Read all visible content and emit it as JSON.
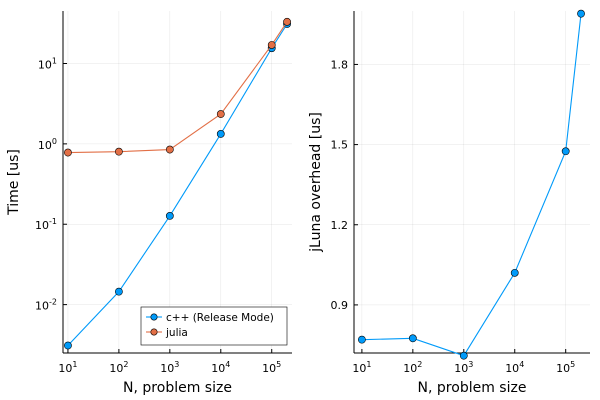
{
  "colors": {
    "cpp": "#009AF9",
    "julia": "#E26F46"
  },
  "chart_data": [
    {
      "type": "line",
      "xscale": "log",
      "yscale": "log",
      "xlabel": "N, problem size",
      "ylabel": "Time [us]",
      "xlim": [
        8,
        250000
      ],
      "ylim": [
        0.0025,
        45
      ],
      "xticks": [
        10,
        100,
        1000,
        10000,
        100000
      ],
      "xtick_labels": [
        {
          "base": "10",
          "exp": "1"
        },
        {
          "base": "10",
          "exp": "2"
        },
        {
          "base": "10",
          "exp": "3"
        },
        {
          "base": "10",
          "exp": "4"
        },
        {
          "base": "10",
          "exp": "5"
        }
      ],
      "yticks": [
        0.01,
        0.1,
        1,
        10
      ],
      "ytick_labels": [
        {
          "base": "10",
          "exp": "-2"
        },
        {
          "base": "10",
          "exp": "-1"
        },
        {
          "base": "10",
          "exp": "0"
        },
        {
          "base": "10",
          "exp": "1"
        }
      ],
      "grid": true,
      "legend_position": "bottom-right",
      "series": [
        {
          "name": "c++ (Release Mode)",
          "color": "#009AF9",
          "x": [
            10,
            100,
            1000,
            10000,
            100000,
            200000
          ],
          "y": [
            0.0031,
            0.0145,
            0.127,
            1.33,
            15.5,
            31
          ]
        },
        {
          "name": "julia",
          "color": "#E26F46",
          "x": [
            10,
            100,
            1000,
            10000,
            100000,
            200000
          ],
          "y": [
            0.78,
            0.8,
            0.85,
            2.35,
            17,
            33
          ]
        }
      ]
    },
    {
      "type": "line",
      "xscale": "log",
      "yscale": "linear",
      "xlabel": "N, problem size",
      "ylabel": "jLuna overhead [us]",
      "xlim": [
        7,
        300000
      ],
      "ylim": [
        0.72,
        2.0
      ],
      "xticks": [
        10,
        100,
        1000,
        10000,
        100000
      ],
      "xtick_labels": [
        {
          "base": "10",
          "exp": "1"
        },
        {
          "base": "10",
          "exp": "2"
        },
        {
          "base": "10",
          "exp": "3"
        },
        {
          "base": "10",
          "exp": "4"
        },
        {
          "base": "10",
          "exp": "5"
        }
      ],
      "yticks": [
        0.9,
        1.2,
        1.5,
        1.8
      ],
      "ytick_labels": [
        "0.9",
        "1.2",
        "1.5",
        "1.8"
      ],
      "grid": true,
      "series": [
        {
          "name": "",
          "color": "#009AF9",
          "x": [
            10,
            100,
            1000,
            10000,
            100000,
            200000
          ],
          "y": [
            0.77,
            0.775,
            0.71,
            1.02,
            1.475,
            1.99
          ]
        }
      ]
    }
  ]
}
